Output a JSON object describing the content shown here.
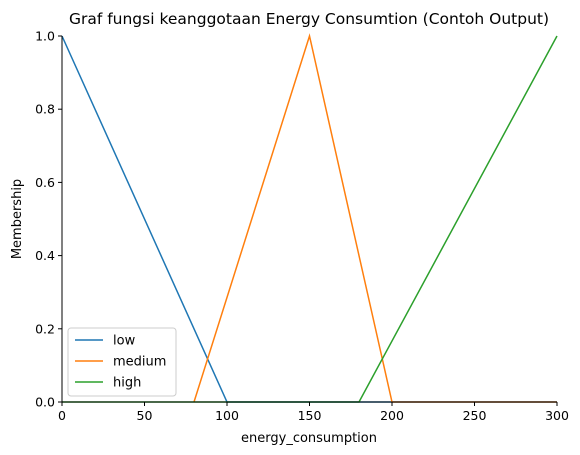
{
  "chart_data": {
    "type": "line",
    "title": "Graf fungsi keanggotaan Energy Consumtion (Contoh Output)",
    "xlabel": "energy_consumption",
    "ylabel": "Membership",
    "xlim": [
      0,
      300
    ],
    "ylim": [
      0,
      1.0
    ],
    "x_ticks": [
      "0",
      "50",
      "100",
      "150",
      "200",
      "250",
      "300"
    ],
    "y_ticks": [
      "0.0",
      "0.2",
      "0.4",
      "0.6",
      "0.8",
      "1.0"
    ],
    "grid": false,
    "legend_position": "lower-left",
    "series": [
      {
        "name": "low",
        "color": "#1f77b4",
        "points": [
          [
            0,
            1
          ],
          [
            100,
            0
          ],
          [
            300,
            0
          ]
        ]
      },
      {
        "name": "medium",
        "color": "#ff7f0e",
        "points": [
          [
            80,
            0
          ],
          [
            150,
            1
          ],
          [
            200,
            0
          ],
          [
            300,
            0
          ]
        ]
      },
      {
        "name": "high",
        "color": "#2ca02c",
        "points": [
          [
            0,
            0
          ],
          [
            180,
            0
          ],
          [
            300,
            1
          ]
        ]
      }
    ]
  }
}
